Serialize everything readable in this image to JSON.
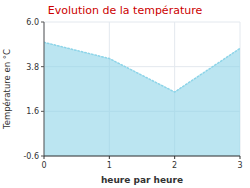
{
  "chart_data": {
    "type": "area",
    "title": "Evolution de la température",
    "x_label": "heure par heure",
    "y_label": "Température en °C",
    "x": [
      0,
      1,
      2,
      3
    ],
    "values": [
      5.0,
      4.2,
      2.55,
      4.7
    ],
    "color": "#8dd4e8",
    "line_style": "dotted",
    "xlim": [
      0,
      3
    ],
    "ylim": [
      -0.6,
      6.0
    ],
    "xticks": [
      0,
      1,
      2,
      3
    ],
    "yticks": [
      -0.6,
      1.6,
      3.8,
      {
        "value": 6.0,
        "label": "6.0"
      }
    ],
    "grid": true
  }
}
